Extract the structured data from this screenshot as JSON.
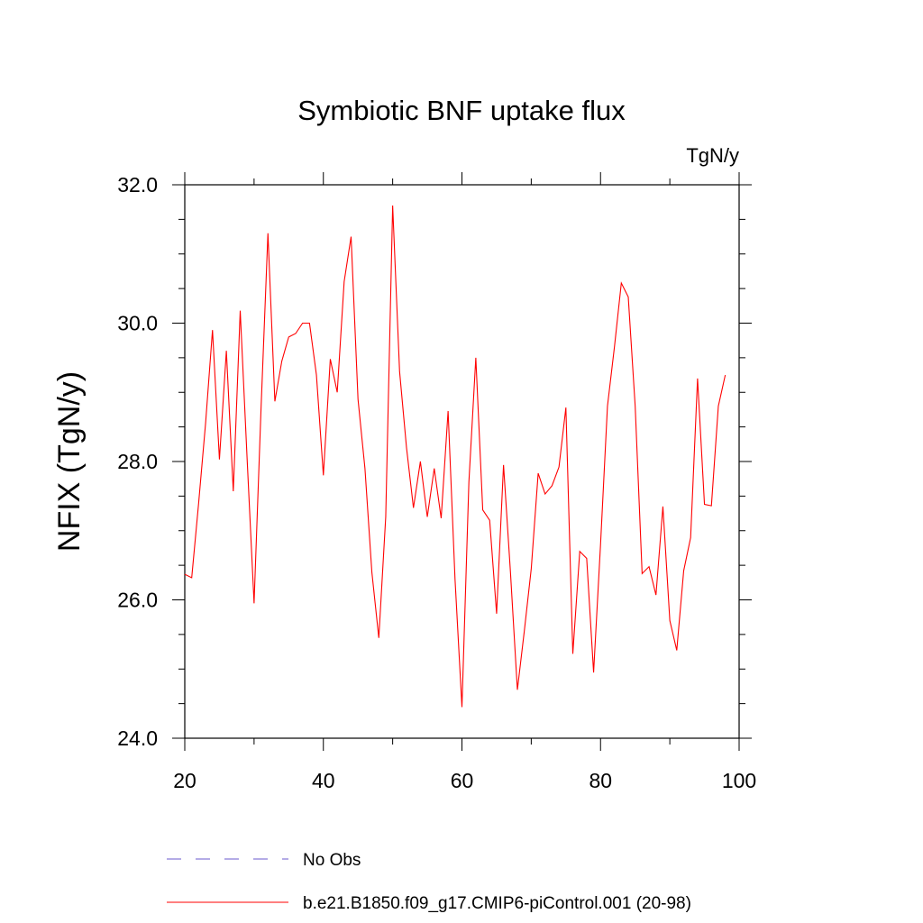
{
  "chart_data": {
    "type": "line",
    "title": "Symbiotic BNF uptake flux",
    "units_label": "TgN/y",
    "xlabel": "",
    "ylabel": "NFIX  (TgN/y)",
    "xlim": [
      20,
      100
    ],
    "ylim": [
      24.0,
      32.0
    ],
    "x_ticks": [
      20,
      40,
      60,
      80,
      100
    ],
    "x_tick_labels": [
      "20",
      "40",
      "60",
      "80",
      "100"
    ],
    "y_ticks": [
      24.0,
      26.0,
      28.0,
      30.0,
      32.0
    ],
    "y_tick_labels": [
      "24.0",
      "26.0",
      "28.0",
      "30.0",
      "32.0"
    ],
    "grid": false,
    "legend_position": "bottom",
    "legend": [
      {
        "label": "No Obs",
        "color": "#6a5acd",
        "style": "dashed"
      },
      {
        "label": "b.e21.B1850.f09_g17.CMIP6-piControl.001 (20-98)",
        "color": "#ff0000",
        "style": "solid"
      }
    ],
    "series": [
      {
        "name": "b.e21.B1850.f09_g17.CMIP6-piControl.001 (20-98)",
        "color": "#ff0000",
        "x": [
          20,
          21,
          22,
          23,
          24,
          25,
          26,
          27,
          28,
          29,
          30,
          31,
          32,
          33,
          34,
          35,
          36,
          37,
          38,
          39,
          40,
          41,
          42,
          43,
          44,
          45,
          46,
          47,
          48,
          49,
          50,
          51,
          52,
          53,
          54,
          55,
          56,
          57,
          58,
          59,
          60,
          61,
          62,
          63,
          64,
          65,
          66,
          67,
          68,
          69,
          70,
          71,
          72,
          73,
          74,
          75,
          76,
          77,
          78,
          79,
          80,
          81,
          82,
          83,
          84,
          85,
          86,
          87,
          88,
          89,
          90,
          91,
          92,
          93,
          94,
          95,
          96,
          97,
          98
        ],
        "values": [
          26.37,
          26.32,
          27.4,
          28.55,
          29.9,
          28.03,
          29.6,
          27.57,
          30.18,
          28.03,
          25.95,
          28.75,
          31.3,
          28.87,
          29.45,
          29.8,
          29.85,
          30.0,
          30.0,
          29.25,
          27.8,
          29.48,
          29.0,
          30.6,
          31.25,
          28.9,
          27.9,
          26.4,
          25.45,
          27.2,
          31.7,
          29.3,
          28.2,
          27.33,
          28.0,
          27.2,
          27.9,
          27.18,
          28.73,
          26.3,
          24.45,
          27.7,
          29.5,
          27.3,
          27.15,
          25.8,
          27.95,
          26.4,
          24.7,
          25.55,
          26.45,
          27.83,
          27.53,
          27.65,
          27.92,
          28.78,
          25.22,
          26.7,
          26.6,
          24.95,
          26.8,
          28.8,
          29.65,
          30.58,
          30.38,
          28.8,
          26.38,
          26.48,
          26.07,
          27.35,
          25.7,
          25.27,
          26.42,
          26.9,
          29.2,
          27.38,
          27.36,
          28.8,
          29.25
        ]
      }
    ]
  }
}
